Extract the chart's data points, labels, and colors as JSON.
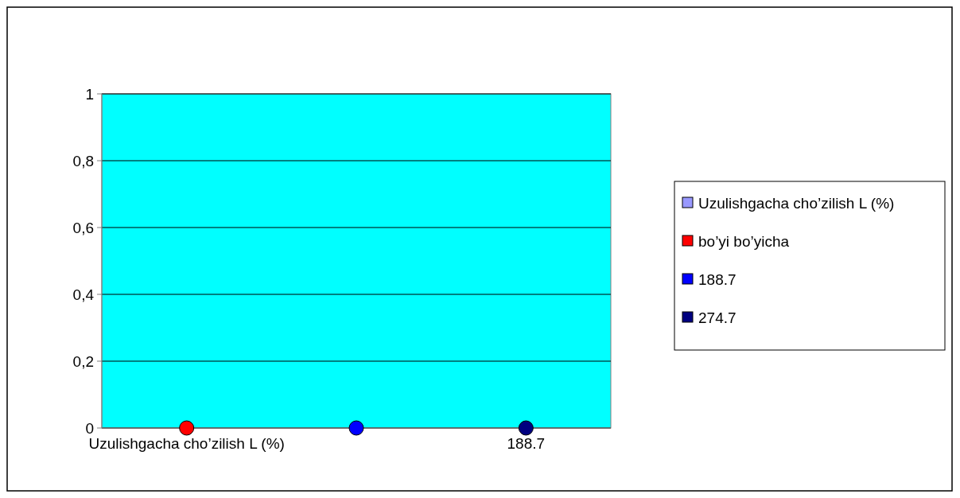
{
  "chart_data": {
    "type": "scatter",
    "categories": [
      "Uzulishgacha cho’zilish L (%)",
      null,
      "188.7"
    ],
    "series": [
      {
        "name": "Uzulishgacha cho’zilish L (%)",
        "color": "#9999ff",
        "values": [
          null,
          null,
          null
        ]
      },
      {
        "name": "bo’yi bo’yicha",
        "color": "#ff0000",
        "values": [
          0,
          null,
          null
        ]
      },
      {
        "name": "188.7",
        "color": "#0000ff",
        "values": [
          null,
          0,
          null
        ]
      },
      {
        "name": "274.7",
        "color": "#000080",
        "values": [
          null,
          null,
          0
        ]
      }
    ],
    "ylim": [
      0,
      1
    ],
    "yticks": [
      0,
      {
        "value": 0.2,
        "label": "0,2"
      },
      {
        "value": 0.4,
        "label": "0,4"
      },
      {
        "value": 0.6,
        "label": "0,6"
      },
      {
        "value": 0.8,
        "label": "0,8"
      },
      1
    ],
    "grid": "y",
    "legend": "right",
    "marker": "circle"
  }
}
